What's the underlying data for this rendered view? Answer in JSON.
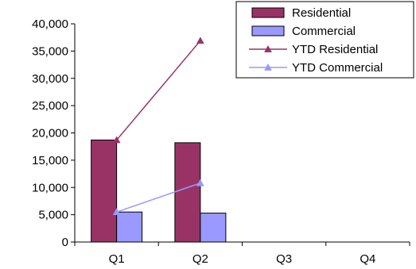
{
  "chart_data": {
    "type": "bar",
    "categories": [
      "Q1",
      "Q2",
      "Q3",
      "Q4"
    ],
    "series": [
      {
        "name": "Residential",
        "kind": "bar",
        "color": "#993366",
        "values": [
          18700,
          18200,
          null,
          null
        ]
      },
      {
        "name": "Commercial",
        "kind": "bar",
        "color": "#9999FF",
        "values": [
          5500,
          5300,
          null,
          null
        ]
      },
      {
        "name": "YTD Residential",
        "kind": "line",
        "marker": "triangle",
        "color": "#993366",
        "values": [
          18700,
          36900,
          null,
          null
        ]
      },
      {
        "name": "YTD Commercial",
        "kind": "line",
        "marker": "triangle",
        "color": "#9999FF",
        "values": [
          5500,
          10800,
          null,
          null
        ]
      }
    ],
    "y_ticks": [
      "0",
      "5,000",
      "10,000",
      "15,000",
      "20,000",
      "25,000",
      "30,000",
      "35,000",
      "40,000"
    ],
    "ylim": [
      0,
      40000
    ],
    "grid": false,
    "legend_position": "top-right"
  }
}
